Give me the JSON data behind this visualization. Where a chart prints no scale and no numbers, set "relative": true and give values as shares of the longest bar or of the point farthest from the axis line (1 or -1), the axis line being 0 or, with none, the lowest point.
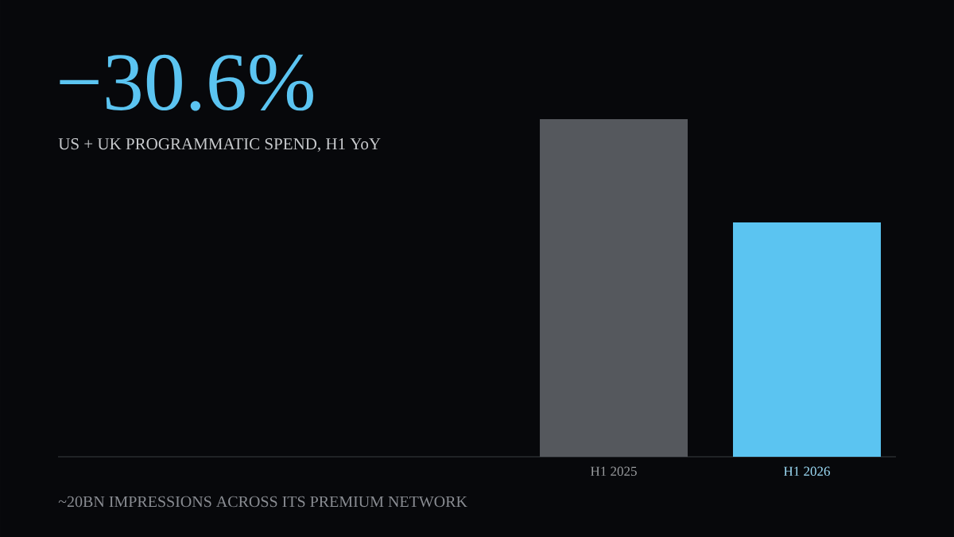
{
  "chart_data": {
    "type": "bar",
    "title": "−30.6%",
    "subtitle": "US + UK PROGRAMMATIC SPEND, H1 YoY",
    "annotations": [
      "~20BN IMPRESSIONS ACROSS ITS PREMIUM NETWORK"
    ],
    "categories": [
      "H1 2025",
      "H1 2026"
    ],
    "values": [
      1,
      0.694
    ],
    "colors": [
      "#55585d",
      "#5bc4f1"
    ],
    "relative": true
  }
}
